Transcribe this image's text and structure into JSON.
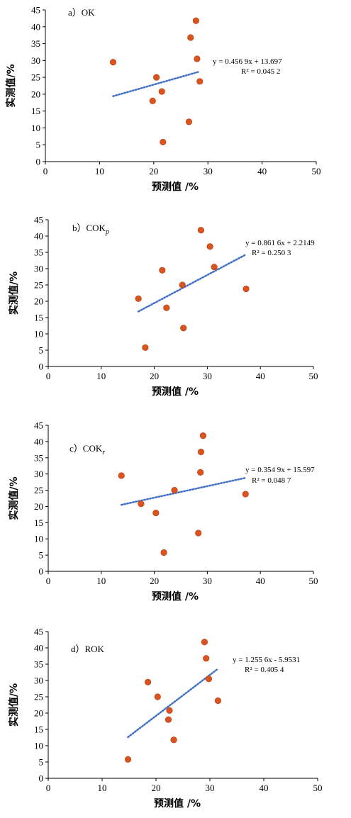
{
  "chart_data": [
    {
      "type": "scatter",
      "panel_label": "a）OK",
      "xlabel": "预测值 /%",
      "ylabel": "实测值/%",
      "xlim": [
        0,
        50
      ],
      "ylim": [
        0,
        45
      ],
      "xticks": [
        0,
        10,
        20,
        30,
        40,
        50
      ],
      "yticks": [
        0,
        5,
        10,
        15,
        20,
        25,
        30,
        35,
        40,
        45
      ],
      "points": [
        {
          "x": 12.5,
          "y": 29.5
        },
        {
          "x": 19.8,
          "y": 18.0
        },
        {
          "x": 20.5,
          "y": 25.0
        },
        {
          "x": 21.5,
          "y": 20.8
        },
        {
          "x": 21.7,
          "y": 5.8
        },
        {
          "x": 26.5,
          "y": 11.8
        },
        {
          "x": 26.8,
          "y": 36.8
        },
        {
          "x": 27.8,
          "y": 41.8
        },
        {
          "x": 28.0,
          "y": 30.5
        },
        {
          "x": 28.5,
          "y": 23.8
        }
      ],
      "trendline": {
        "slope": 0.4569,
        "intercept": 13.697,
        "x_range": [
          12.5,
          28.5
        ],
        "style": "dotted"
      },
      "equation": "y = 0.456 9x + 13.697",
      "r2": "R² = 0.045 2"
    },
    {
      "type": "scatter",
      "panel_label": "b）COKp",
      "xlabel": "预测值 /%",
      "ylabel": "实测值/%",
      "xlim": [
        0,
        50
      ],
      "ylim": [
        0,
        45
      ],
      "xticks": [
        0,
        10,
        20,
        30,
        40,
        50
      ],
      "yticks": [
        0,
        5,
        10,
        15,
        20,
        25,
        30,
        35,
        40,
        45
      ],
      "points": [
        {
          "x": 17.0,
          "y": 20.8
        },
        {
          "x": 18.3,
          "y": 5.8
        },
        {
          "x": 21.5,
          "y": 29.5
        },
        {
          "x": 22.3,
          "y": 18.0
        },
        {
          "x": 25.3,
          "y": 25.0
        },
        {
          "x": 25.5,
          "y": 11.8
        },
        {
          "x": 28.8,
          "y": 41.8
        },
        {
          "x": 30.5,
          "y": 36.8
        },
        {
          "x": 31.3,
          "y": 30.5
        },
        {
          "x": 37.3,
          "y": 23.8
        }
      ],
      "trendline": {
        "slope": 0.8616,
        "intercept": 2.2149,
        "x_range": [
          17.0,
          37.3
        ],
        "style": "dotted"
      },
      "equation": "y = 0.861 6x + 2.2149",
      "r2": "R² = 0.250 3"
    },
    {
      "type": "scatter",
      "panel_label": "c）COKr",
      "xlabel": "预测值 /%",
      "ylabel": "实测值/%",
      "xlim": [
        0,
        50
      ],
      "ylim": [
        0,
        45
      ],
      "xticks": [
        0,
        10,
        20,
        30,
        40,
        50
      ],
      "yticks": [
        0,
        5,
        10,
        15,
        20,
        25,
        30,
        35,
        40,
        45
      ],
      "points": [
        {
          "x": 13.8,
          "y": 29.5
        },
        {
          "x": 17.5,
          "y": 20.8
        },
        {
          "x": 20.3,
          "y": 18.0
        },
        {
          "x": 21.8,
          "y": 5.8
        },
        {
          "x": 23.8,
          "y": 25.0
        },
        {
          "x": 28.3,
          "y": 11.8
        },
        {
          "x": 28.7,
          "y": 30.5
        },
        {
          "x": 28.8,
          "y": 36.8
        },
        {
          "x": 29.2,
          "y": 41.8
        },
        {
          "x": 37.2,
          "y": 23.8
        }
      ],
      "trendline": {
        "slope": 0.3549,
        "intercept": 15.597,
        "x_range": [
          13.8,
          37.2
        ],
        "style": "dotted"
      },
      "equation": "y = 0.354 9x + 15.597",
      "r2": "R² = 0.048 7"
    },
    {
      "type": "scatter",
      "panel_label": "d）ROK",
      "xlabel": "预测值 /%",
      "ylabel": "实测值/%",
      "xlim": [
        0,
        50
      ],
      "ylim": [
        0,
        45
      ],
      "xticks": [
        0,
        10,
        20,
        30,
        40,
        50
      ],
      "yticks": [
        0,
        5,
        10,
        15,
        20,
        25,
        30,
        35,
        40,
        45
      ],
      "points": [
        {
          "x": 14.8,
          "y": 5.8
        },
        {
          "x": 18.5,
          "y": 29.5
        },
        {
          "x": 20.3,
          "y": 25.0
        },
        {
          "x": 22.3,
          "y": 18.0
        },
        {
          "x": 22.5,
          "y": 20.8
        },
        {
          "x": 23.3,
          "y": 11.8
        },
        {
          "x": 29.0,
          "y": 41.8
        },
        {
          "x": 29.3,
          "y": 36.8
        },
        {
          "x": 29.8,
          "y": 30.5
        },
        {
          "x": 31.5,
          "y": 23.8
        }
      ],
      "trendline": {
        "slope": 1.2556,
        "intercept": -5.9531,
        "x_range": [
          14.8,
          31.5
        ],
        "style": "dotted"
      },
      "equation": "y = 1.255 6x - 5.9531",
      "r2": "R² = 0.405 4"
    }
  ],
  "colors": {
    "point_fill": "#d9541e",
    "point_stroke": "#c0441a",
    "trendline": "#4472c4",
    "axis": "#000000"
  }
}
